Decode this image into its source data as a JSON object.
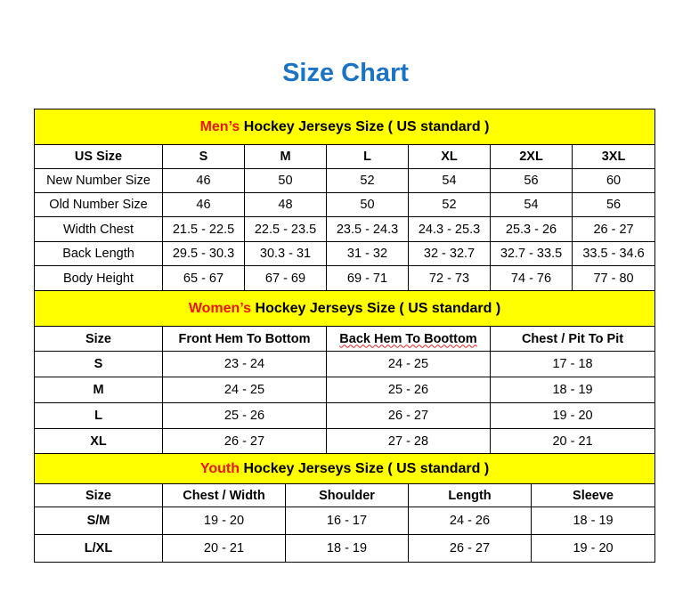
{
  "title": "Size Chart",
  "colors": {
    "title": "#1a73c4",
    "header_bg": "#ffff00",
    "accent_red": "#e8160c"
  },
  "men": {
    "heading_prefix": "Men’s",
    "heading_rest": " Hockey Jerseys Size ( US standard )",
    "columns": [
      "US Size",
      "S",
      "M",
      "L",
      "XL",
      "2XL",
      "3XL"
    ],
    "rows": [
      [
        "New Number Size",
        "46",
        "50",
        "52",
        "54",
        "56",
        "60"
      ],
      [
        "Old Number Size",
        "46",
        "48",
        "50",
        "52",
        "54",
        "56"
      ],
      [
        "Width Chest",
        "21.5 - 22.5",
        "22.5 - 23.5",
        "23.5 - 24.3",
        "24.3 - 25.3",
        "25.3 - 26",
        "26 - 27"
      ],
      [
        "Back Length",
        "29.5 - 30.3",
        "30.3 - 31",
        "31 - 32",
        "32 - 32.7",
        "32.7 - 33.5",
        "33.5 - 34.6"
      ],
      [
        "Body Height",
        "65 - 67",
        "67 - 69",
        "69 - 71",
        "72 - 73",
        "74 - 76",
        "77 - 80"
      ]
    ]
  },
  "women": {
    "heading_prefix": "Women’s",
    "heading_rest": " Hockey Jerseys Size ( US standard )",
    "columns": [
      "Size",
      "Front Hem To Bottom",
      "Back Hem To Boottom",
      "Chest / Pit To Pit"
    ],
    "rows": [
      [
        "S",
        "23 - 24",
        "24 - 25",
        "17 - 18"
      ],
      [
        "M",
        "24 - 25",
        "25 - 26",
        "18 - 19"
      ],
      [
        "L",
        "25 - 26",
        "26 - 27",
        "19 - 20"
      ],
      [
        "XL",
        "26 - 27",
        "27 - 28",
        "20 - 21"
      ]
    ]
  },
  "youth": {
    "heading_prefix": "Youth",
    "heading_rest": " Hockey Jerseys Size ( US standard )",
    "columns": [
      "Size",
      "Chest / Width",
      "Shoulder",
      "Length",
      "Sleeve"
    ],
    "rows": [
      [
        "S/M",
        "19 - 20",
        "16 - 17",
        "24 - 26",
        "18 - 19"
      ],
      [
        "L/XL",
        "20 - 21",
        "18 - 19",
        "26 - 27",
        "19 - 20"
      ]
    ]
  }
}
